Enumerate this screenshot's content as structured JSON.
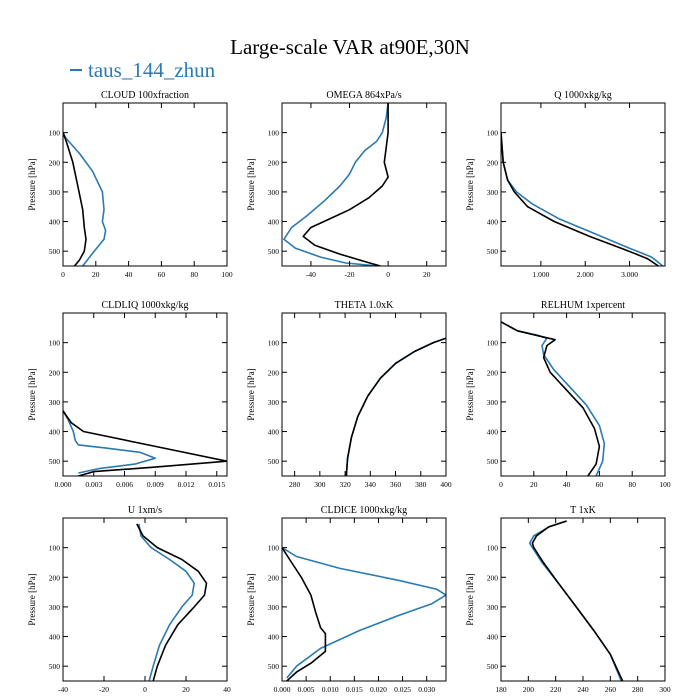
{
  "figure": {
    "title": "Large-scale VAR at90E,30N",
    "legend": [
      {
        "name": "taus_144_zhun",
        "color": "#2a7ab0"
      }
    ],
    "ylabel": "Pressure [hPa]",
    "line_colors": {
      "series_0": "#2a7ab0",
      "series_1": "#000000"
    }
  },
  "chart_data": [
    {
      "type": "line",
      "title": "CLOUD  100xfraction",
      "xlabel": "",
      "ylabel": "Pressure [hPa]",
      "xlim": [
        0,
        100
      ],
      "ylim": [
        0,
        550
      ],
      "xticks": [
        0,
        20,
        40,
        60,
        80,
        100
      ],
      "xtick_labels": [
        "0",
        "20",
        "40",
        "60",
        "80",
        "100"
      ],
      "yticks": [
        100,
        200,
        300,
        400,
        500
      ],
      "ytick_labels": [
        "100",
        "200",
        "300",
        "400",
        "500"
      ],
      "series": [
        {
          "name": "taus_144_zhun",
          "color": "#2a7ab0",
          "x": [
            0,
            2,
            10,
            18,
            24,
            25,
            24,
            26,
            25,
            19,
            12
          ],
          "y": [
            100,
            120,
            170,
            230,
            300,
            360,
            400,
            430,
            460,
            500,
            550
          ]
        },
        {
          "color": "#000000",
          "x": [
            0,
            2,
            6,
            9,
            12,
            13,
            14,
            13,
            10,
            7
          ],
          "y": [
            100,
            130,
            200,
            280,
            360,
            420,
            460,
            500,
            530,
            550
          ]
        }
      ]
    },
    {
      "type": "line",
      "title": "OMEGA  864xPa/s",
      "xlabel": "",
      "ylabel": "Pressure [hPa]",
      "xlim": [
        -55,
        30
      ],
      "ylim": [
        0,
        550
      ],
      "xticks": [
        -40,
        -20,
        0,
        20
      ],
      "xtick_labels": [
        "-40",
        "-20",
        "0",
        "20"
      ],
      "yticks": [
        100,
        200,
        300,
        400,
        500
      ],
      "ytick_labels": [
        "100",
        "200",
        "300",
        "400",
        "500"
      ],
      "series": [
        {
          "name": "taus_144_zhun",
          "color": "#2a7ab0",
          "x": [
            0,
            -1,
            -3,
            -6,
            -12,
            -17,
            -20,
            -25,
            -33,
            -42,
            -50,
            -54,
            -48,
            -35,
            -22,
            -5
          ],
          "y": [
            0,
            50,
            100,
            130,
            160,
            200,
            240,
            280,
            330,
            380,
            420,
            460,
            490,
            520,
            540,
            550
          ]
        },
        {
          "color": "#000000",
          "x": [
            0,
            0,
            0,
            -1,
            -2,
            0,
            -3,
            -10,
            -20,
            -30,
            -40,
            -44,
            -38,
            -25,
            -12,
            -4
          ],
          "y": [
            0,
            50,
            100,
            150,
            200,
            250,
            280,
            320,
            360,
            390,
            420,
            450,
            480,
            510,
            535,
            550
          ]
        }
      ]
    },
    {
      "type": "line",
      "title": "Q  1000xkg/kg",
      "xlabel": "",
      "ylabel": "Pressure [hPa]",
      "xlim": [
        0.1,
        3.8
      ],
      "ylim": [
        0,
        550
      ],
      "xticks": [
        1.0,
        2.0,
        3.0
      ],
      "xtick_labels": [
        "1.000",
        "2.000",
        "3.000"
      ],
      "yticks": [
        100,
        200,
        300,
        400,
        500
      ],
      "ytick_labels": [
        "100",
        "200",
        "300",
        "400",
        "500"
      ],
      "series": [
        {
          "name": "taus_144_zhun",
          "color": "#2a7ab0",
          "x": [
            0.1,
            0.15,
            0.25,
            0.45,
            0.8,
            1.4,
            2.2,
            3.0,
            3.5,
            3.75
          ],
          "y": [
            100,
            200,
            260,
            300,
            340,
            390,
            440,
            490,
            520,
            550
          ]
        },
        {
          "color": "#000000",
          "x": [
            0.1,
            0.15,
            0.25,
            0.4,
            0.7,
            1.3,
            2.1,
            2.9,
            3.4,
            3.65
          ],
          "y": [
            100,
            200,
            260,
            300,
            350,
            400,
            450,
            495,
            525,
            550
          ]
        }
      ]
    },
    {
      "type": "line",
      "title": "CLDLIQ  1000xkg/kg",
      "xlabel": "",
      "ylabel": "Pressure [hPa]",
      "xlim": [
        0,
        0.016
      ],
      "ylim": [
        0,
        550
      ],
      "xticks": [
        0,
        0.003,
        0.006,
        0.009,
        0.012,
        0.015
      ],
      "xtick_labels": [
        "0.000",
        "0.003",
        "0.006",
        "0.009",
        "0.012",
        "0.015"
      ],
      "yticks": [
        100,
        200,
        300,
        400,
        500
      ],
      "ytick_labels": [
        "100",
        "200",
        "300",
        "400",
        "500"
      ],
      "series": [
        {
          "name": "taus_144_zhun",
          "color": "#2a7ab0",
          "x": [
            0,
            0.0005,
            0.001,
            0.0012,
            0.0015,
            0.004,
            0.0075,
            0.009,
            0.007,
            0.0035,
            0.0015
          ],
          "y": [
            330,
            360,
            400,
            430,
            445,
            455,
            470,
            490,
            510,
            525,
            540
          ]
        },
        {
          "color": "#000000",
          "x": [
            0,
            0.0008,
            0.002,
            0.009,
            0.016,
            0.009,
            0.003,
            0.0015
          ],
          "y": [
            330,
            370,
            400,
            450,
            500,
            520,
            535,
            550
          ]
        }
      ]
    },
    {
      "type": "line",
      "title": "THETA  1.0xK",
      "xlabel": "",
      "ylabel": "Pressure [hPa]",
      "xlim": [
        270,
        400
      ],
      "ylim": [
        0,
        550
      ],
      "xticks": [
        280,
        300,
        320,
        340,
        360,
        380,
        400
      ],
      "xtick_labels": [
        "280",
        "300",
        "320",
        "340",
        "360",
        "380",
        "400"
      ],
      "yticks": [
        100,
        200,
        300,
        400,
        500
      ],
      "ytick_labels": [
        "100",
        "200",
        "300",
        "400",
        "500"
      ],
      "series": [
        {
          "name": "taus_144_zhun",
          "color": "#2a7ab0",
          "x": [
            400,
            390,
            375,
            360,
            348,
            338,
            330,
            325,
            322,
            321
          ],
          "y": [
            85,
            100,
            130,
            170,
            220,
            280,
            350,
            420,
            490,
            550
          ]
        },
        {
          "color": "#000000",
          "x": [
            400,
            390,
            375,
            360,
            348,
            338,
            330,
            325,
            322,
            321
          ],
          "y": [
            85,
            100,
            130,
            170,
            220,
            280,
            350,
            420,
            490,
            550
          ]
        }
      ]
    },
    {
      "type": "line",
      "title": "RELHUM  1xpercent",
      "xlabel": "",
      "ylabel": "Pressure [hPa]",
      "xlim": [
        0,
        100
      ],
      "ylim": [
        0,
        550
      ],
      "xticks": [
        0,
        20,
        40,
        60,
        80,
        100
      ],
      "xtick_labels": [
        "0",
        "20",
        "40",
        "60",
        "80",
        "100"
      ],
      "yticks": [
        100,
        200,
        300,
        400,
        500
      ],
      "ytick_labels": [
        "100",
        "200",
        "300",
        "400",
        "500"
      ],
      "series": [
        {
          "name": "taus_144_zhun",
          "color": "#2a7ab0",
          "x": [
            0,
            10,
            22,
            28,
            25,
            26,
            32,
            42,
            52,
            60,
            63,
            62,
            58
          ],
          "y": [
            30,
            60,
            75,
            85,
            110,
            140,
            190,
            250,
            310,
            380,
            440,
            500,
            550
          ]
        },
        {
          "color": "#000000",
          "x": [
            0,
            10,
            25,
            33,
            28,
            26,
            30,
            40,
            50,
            57,
            60,
            58,
            53
          ],
          "y": [
            30,
            60,
            80,
            90,
            110,
            150,
            200,
            260,
            320,
            390,
            450,
            510,
            550
          ]
        }
      ]
    },
    {
      "type": "line",
      "title": "U  1xm/s",
      "xlabel": "",
      "ylabel": "Pressure [hPa]",
      "xlim": [
        -40,
        40
      ],
      "ylim": [
        0,
        550
      ],
      "xticks": [
        -40,
        -20,
        0,
        20,
        40
      ],
      "xtick_labels": [
        "-40",
        "-20",
        "0",
        "20",
        "40"
      ],
      "yticks": [
        100,
        200,
        300,
        400,
        500
      ],
      "ytick_labels": [
        "100",
        "200",
        "300",
        "400",
        "500"
      ],
      "series": [
        {
          "name": "taus_144_zhun",
          "color": "#2a7ab0",
          "x": [
            -3,
            -2,
            3,
            12,
            20,
            24,
            23,
            18,
            12,
            7,
            4,
            2
          ],
          "y": [
            20,
            60,
            100,
            140,
            180,
            220,
            260,
            300,
            360,
            430,
            500,
            550
          ]
        },
        {
          "color": "#000000",
          "x": [
            -4,
            -1,
            6,
            18,
            26,
            30,
            29,
            24,
            16,
            10,
            6,
            4
          ],
          "y": [
            20,
            60,
            100,
            140,
            180,
            220,
            260,
            300,
            360,
            430,
            500,
            550
          ]
        }
      ]
    },
    {
      "type": "line",
      "title": "CLDICE  1000xkg/kg",
      "xlabel": "",
      "ylabel": "Pressure [hPa]",
      "xlim": [
        0,
        0.034
      ],
      "ylim": [
        0,
        550
      ],
      "xticks": [
        0,
        0.005,
        0.01,
        0.015,
        0.02,
        0.025,
        0.03
      ],
      "xtick_labels": [
        "0.000",
        "0.005",
        "0.010",
        "0.015",
        "0.020",
        "0.025",
        "0.030"
      ],
      "yticks": [
        100,
        200,
        300,
        400,
        500
      ],
      "ytick_labels": [
        "100",
        "200",
        "300",
        "400",
        "500"
      ],
      "series": [
        {
          "name": "taus_144_zhun",
          "color": "#2a7ab0",
          "x": [
            0,
            0.003,
            0.012,
            0.024,
            0.032,
            0.034,
            0.031,
            0.024,
            0.016,
            0.008,
            0.003,
            0.001
          ],
          "y": [
            100,
            130,
            170,
            210,
            240,
            260,
            290,
            330,
            380,
            440,
            500,
            540
          ]
        },
        {
          "color": "#000000",
          "x": [
            0,
            0.002,
            0.004,
            0.006,
            0.007,
            0.008,
            0.009,
            0.009,
            0.006,
            0.003,
            0.001
          ],
          "y": [
            100,
            150,
            200,
            260,
            320,
            370,
            390,
            450,
            490,
            520,
            550
          ]
        }
      ]
    },
    {
      "type": "line",
      "title": "T  1xK",
      "xlabel": "",
      "ylabel": "Pressure [hPa]",
      "xlim": [
        180,
        300
      ],
      "ylim": [
        0,
        550
      ],
      "xticks": [
        180,
        200,
        220,
        240,
        260,
        280,
        300
      ],
      "xtick_labels": [
        "180",
        "200",
        "220",
        "240",
        "260",
        "280",
        "300"
      ],
      "yticks": [
        100,
        200,
        300,
        400,
        500
      ],
      "ytick_labels": [
        "100",
        "200",
        "300",
        "400",
        "500"
      ],
      "series": [
        {
          "name": "taus_144_zhun",
          "color": "#2a7ab0",
          "x": [
            228,
            215,
            204,
            201,
            203,
            210,
            222,
            235,
            248,
            260,
            268
          ],
          "y": [
            10,
            30,
            60,
            85,
            100,
            150,
            220,
            300,
            380,
            460,
            550
          ]
        },
        {
          "color": "#000000",
          "x": [
            228,
            215,
            206,
            203,
            204,
            211,
            222,
            235,
            248,
            260,
            269
          ],
          "y": [
            10,
            30,
            60,
            85,
            100,
            150,
            220,
            300,
            380,
            460,
            550
          ]
        }
      ]
    }
  ]
}
